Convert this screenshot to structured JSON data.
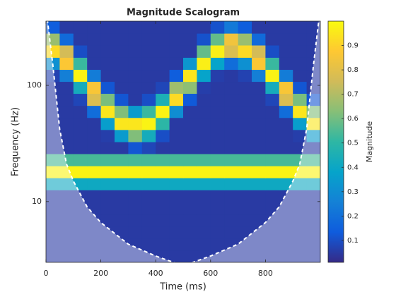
{
  "chart_data": {
    "type": "heatmap",
    "title": "Magnitude Scalogram",
    "xlabel": "Time (ms)",
    "ylabel": "Frequency (Hz)",
    "colorbar_label": "Magnitude",
    "colormap": "parula",
    "xlim": [
      0,
      1000
    ],
    "xticks": [
      0,
      200,
      400,
      600,
      800
    ],
    "ylim": [
      3,
      357
    ],
    "yticks": [
      10,
      100
    ],
    "yscale": "log",
    "clim": [
      0.01,
      1
    ],
    "cticks": [
      0.1,
      0.2,
      0.3,
      0.4,
      0.5,
      0.6,
      0.7,
      0.8,
      0.9
    ],
    "x_bins": [
      0,
      50,
      100,
      150,
      200,
      250,
      300,
      350,
      400,
      450,
      500,
      550,
      600,
      650,
      700,
      750,
      800,
      850,
      900,
      950,
      1000
    ],
    "y_bins": [
      3,
      3.81,
      4.84,
      6.15,
      7.8,
      9.91,
      12.6,
      16,
      20.3,
      25.8,
      32.7,
      41.6,
      52.8,
      67.1,
      85.2,
      108,
      137,
      174,
      222,
      281,
      357
    ],
    "z": [
      [
        0.05,
        0.05,
        0.05,
        0.05,
        0.05,
        0.05,
        0.05,
        0.05,
        0.05,
        0.05,
        0.05,
        0.05,
        0.05,
        0.05,
        0.05,
        0.05,
        0.05,
        0.05,
        0.05,
        0.05
      ],
      [
        0.05,
        0.05,
        0.05,
        0.05,
        0.05,
        0.05,
        0.05,
        0.05,
        0.05,
        0.05,
        0.05,
        0.05,
        0.05,
        0.05,
        0.05,
        0.05,
        0.05,
        0.05,
        0.05,
        0.05
      ],
      [
        0.05,
        0.05,
        0.05,
        0.05,
        0.05,
        0.05,
        0.05,
        0.05,
        0.05,
        0.05,
        0.05,
        0.05,
        0.05,
        0.05,
        0.05,
        0.05,
        0.05,
        0.05,
        0.05,
        0.05
      ],
      [
        0.05,
        0.05,
        0.05,
        0.05,
        0.05,
        0.05,
        0.05,
        0.05,
        0.05,
        0.05,
        0.05,
        0.05,
        0.05,
        0.05,
        0.05,
        0.05,
        0.05,
        0.05,
        0.05,
        0.05
      ],
      [
        0.05,
        0.05,
        0.05,
        0.05,
        0.05,
        0.05,
        0.05,
        0.05,
        0.05,
        0.05,
        0.05,
        0.05,
        0.05,
        0.05,
        0.05,
        0.05,
        0.05,
        0.05,
        0.05,
        0.05
      ],
      [
        0.05,
        0.05,
        0.05,
        0.05,
        0.05,
        0.05,
        0.05,
        0.05,
        0.05,
        0.05,
        0.05,
        0.05,
        0.05,
        0.05,
        0.05,
        0.05,
        0.05,
        0.05,
        0.05,
        0.05
      ],
      [
        0.41,
        0.41,
        0.41,
        0.41,
        0.41,
        0.41,
        0.41,
        0.41,
        0.41,
        0.41,
        0.41,
        0.41,
        0.41,
        0.41,
        0.41,
        0.41,
        0.41,
        0.41,
        0.41,
        0.41
      ],
      [
        0.98,
        0.98,
        0.98,
        0.98,
        0.98,
        0.98,
        0.98,
        0.98,
        0.98,
        0.98,
        0.98,
        0.98,
        0.98,
        0.98,
        0.98,
        0.98,
        0.98,
        0.98,
        0.98,
        0.98
      ],
      [
        0.54,
        0.54,
        0.54,
        0.54,
        0.54,
        0.54,
        0.54,
        0.54,
        0.54,
        0.54,
        0.54,
        0.54,
        0.54,
        0.54,
        0.54,
        0.54,
        0.54,
        0.54,
        0.54,
        0.54
      ],
      [
        0.05,
        0.05,
        0.05,
        0.05,
        0.05,
        0.05,
        0.12,
        0.08,
        0.05,
        0.05,
        0.05,
        0.05,
        0.05,
        0.05,
        0.05,
        0.05,
        0.05,
        0.05,
        0.05,
        0.05
      ],
      [
        0.05,
        0.05,
        0.05,
        0.05,
        0.06,
        0.35,
        0.62,
        0.43,
        0.1,
        0.05,
        0.05,
        0.05,
        0.05,
        0.05,
        0.05,
        0.05,
        0.05,
        0.05,
        0.06,
        0.35
      ],
      [
        0.05,
        0.05,
        0.05,
        0.05,
        0.36,
        0.95,
        0.95,
        0.98,
        0.5,
        0.05,
        0.05,
        0.05,
        0.05,
        0.05,
        0.05,
        0.05,
        0.05,
        0.05,
        0.36,
        0.95
      ],
      [
        0.05,
        0.05,
        0.05,
        0.19,
        0.95,
        0.62,
        0.35,
        0.52,
        0.98,
        0.3,
        0.05,
        0.05,
        0.05,
        0.05,
        0.05,
        0.05,
        0.05,
        0.19,
        0.95,
        0.62
      ],
      [
        0.05,
        0.05,
        0.08,
        0.78,
        0.61,
        0.12,
        0.05,
        0.1,
        0.45,
        0.92,
        0.13,
        0.05,
        0.05,
        0.05,
        0.05,
        0.05,
        0.08,
        0.78,
        0.61,
        0.12
      ],
      [
        0.05,
        0.05,
        0.43,
        0.86,
        0.12,
        0.05,
        0.05,
        0.05,
        0.08,
        0.67,
        0.64,
        0.06,
        0.05,
        0.05,
        0.05,
        0.05,
        0.43,
        0.86,
        0.12,
        0.05
      ],
      [
        0.07,
        0.25,
        0.98,
        0.24,
        0.05,
        0.05,
        0.05,
        0.05,
        0.05,
        0.14,
        0.95,
        0.38,
        0.06,
        0.05,
        0.07,
        0.25,
        0.98,
        0.24,
        0.05,
        0.05
      ],
      [
        0.31,
        0.87,
        0.52,
        0.05,
        0.05,
        0.05,
        0.05,
        0.05,
        0.05,
        0.05,
        0.33,
        0.97,
        0.38,
        0.19,
        0.31,
        0.87,
        0.52,
        0.05,
        0.05,
        0.05
      ],
      [
        0.92,
        0.76,
        0.1,
        0.05,
        0.05,
        0.05,
        0.05,
        0.05,
        0.05,
        0.05,
        0.05,
        0.58,
        0.97,
        0.78,
        0.92,
        0.76,
        0.1,
        0.05,
        0.05,
        0.05
      ],
      [
        0.66,
        0.18,
        0.05,
        0.05,
        0.05,
        0.05,
        0.05,
        0.05,
        0.05,
        0.05,
        0.05,
        0.11,
        0.58,
        0.84,
        0.66,
        0.18,
        0.05,
        0.05,
        0.05,
        0.05
      ],
      [
        0.14,
        0.05,
        0.05,
        0.05,
        0.05,
        0.05,
        0.05,
        0.05,
        0.05,
        0.05,
        0.05,
        0.05,
        0.11,
        0.23,
        0.14,
        0.05,
        0.05,
        0.05,
        0.05,
        0.05
      ]
    ],
    "coi": {
      "x": [
        5,
        25,
        50,
        75,
        100,
        150,
        200,
        300,
        400,
        500,
        600,
        700,
        800,
        850,
        900,
        925,
        950,
        975,
        995
      ],
      "values": [
        370,
        150,
        42,
        21,
        15,
        9,
        6.6,
        4.3,
        3.4,
        2.8,
        3.4,
        4.3,
        6.6,
        9,
        15,
        21,
        42,
        150,
        370
      ]
    },
    "coi_color": "#ffffff"
  }
}
